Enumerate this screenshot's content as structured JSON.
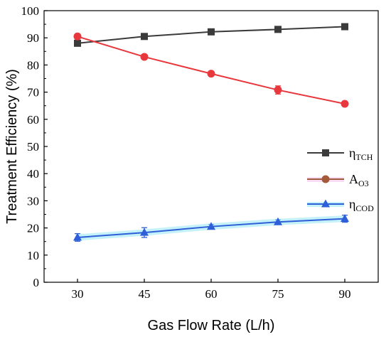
{
  "chart_data": {
    "type": "line",
    "xlabel": "Gas Flow Rate (L/h)",
    "ylabel": "Treatment Efficiency (%)",
    "x": [
      30,
      45,
      60,
      75,
      90
    ],
    "x_ticks": [
      "30",
      "45",
      "60",
      "75",
      "90"
    ],
    "y_ticks": [
      "0",
      "10",
      "20",
      "30",
      "40",
      "50",
      "60",
      "70",
      "80",
      "90",
      "100"
    ],
    "xlim": [
      22.5,
      97.5
    ],
    "ylim": [
      0,
      100
    ],
    "grid": false,
    "legend_position": "right-middle",
    "series": [
      {
        "name": "η",
        "sub": "TCH",
        "color": "#3b3b3b",
        "marker": "square",
        "values": [
          88,
          90.5,
          92.2,
          93.1,
          94.1
        ],
        "errors": [
          0.5,
          0.4,
          0.4,
          0.4,
          0.4
        ]
      },
      {
        "name": "A",
        "sub": "O3",
        "color": "#e8383d",
        "marker": "circle",
        "values": [
          90.5,
          83,
          76.8,
          70.8,
          65.7
        ],
        "errors": [
          0.4,
          0.4,
          0.5,
          1.5,
          0.5
        ]
      },
      {
        "name": "η",
        "sub": "COD",
        "color": "#2f5fd8",
        "marker": "triangle",
        "values": [
          16.5,
          18.3,
          20.5,
          22.2,
          23.4
        ],
        "errors": [
          1.4,
          1.8,
          0.8,
          0.8,
          1.3
        ]
      }
    ]
  }
}
